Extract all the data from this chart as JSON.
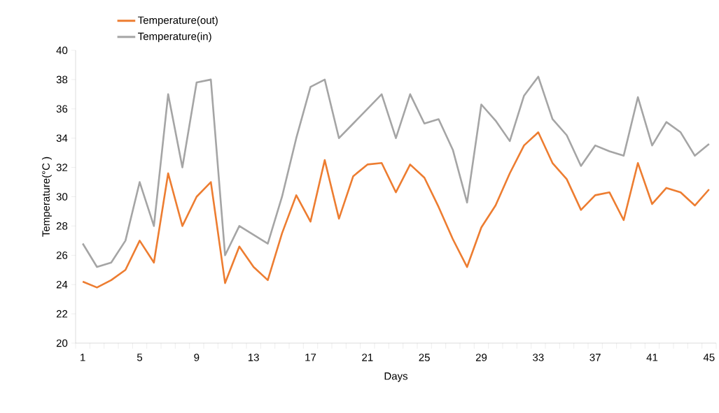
{
  "chart_data": {
    "type": "line",
    "xlabel": "Days",
    "ylabel": "Temperature(°C )",
    "categories": [
      "1",
      null,
      null,
      null,
      "5",
      null,
      null,
      null,
      "9",
      null,
      null,
      null,
      "13",
      null,
      null,
      null,
      "17",
      null,
      null,
      null,
      "21",
      null,
      null,
      null,
      "25",
      null,
      null,
      null,
      "29",
      null,
      null,
      null,
      "33",
      null,
      null,
      null,
      "37",
      null,
      null,
      null,
      "41",
      null,
      null,
      null,
      "45"
    ],
    "series": [
      {
        "name": "Temperature(out)",
        "color": "#ed7d31",
        "values": [
          24.2,
          23.8,
          24.3,
          25.0,
          27.0,
          25.5,
          31.6,
          28.0,
          30.0,
          31.0,
          24.1,
          26.6,
          25.2,
          24.3,
          27.5,
          30.1,
          28.3,
          32.5,
          28.5,
          31.4,
          32.2,
          32.3,
          30.3,
          32.2,
          31.3,
          29.3,
          27.1,
          25.2,
          27.9,
          29.4,
          31.6,
          33.5,
          34.4,
          32.3,
          31.2,
          29.1,
          30.1,
          30.3,
          28.4,
          32.3,
          29.5,
          30.6,
          30.3,
          29.4,
          30.5
        ]
      },
      {
        "name": "Temperature(in)",
        "color": "#a5a5a5",
        "values": [
          26.8,
          25.2,
          25.5,
          27.0,
          31.0,
          28.0,
          37.0,
          32.0,
          37.8,
          38.0,
          26.0,
          28.0,
          27.4,
          26.8,
          30.0,
          34.0,
          37.5,
          38.0,
          34.0,
          35.0,
          36.0,
          37.0,
          34.0,
          37.0,
          35.0,
          35.3,
          33.2,
          29.6,
          36.3,
          35.2,
          33.8,
          36.9,
          38.2,
          35.3,
          34.2,
          32.1,
          33.5,
          33.1,
          32.8,
          36.8,
          33.5,
          35.1,
          34.4,
          32.8,
          33.6
        ]
      }
    ],
    "ylim": [
      20,
      40
    ],
    "yticks": [
      20,
      22,
      24,
      26,
      28,
      30,
      32,
      34,
      36,
      38,
      40
    ],
    "legend": "top",
    "grid": false
  }
}
